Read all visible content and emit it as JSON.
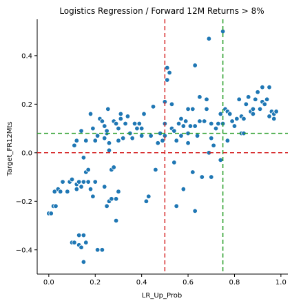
{
  "chart_data": {
    "type": "scatter",
    "title": "Logistics Regression / Forward 12M Returns > 8%",
    "xlabel": "LR_Up_Prob",
    "ylabel": "Target_FR12Mts",
    "xlim": [
      -0.05,
      1.03
    ],
    "ylim": [
      -0.5,
      0.55
    ],
    "xticks": [
      0.0,
      0.2,
      0.4,
      0.6,
      0.8,
      1.0
    ],
    "xtick_labels": [
      "0.0",
      "0.2",
      "0.4",
      "0.6",
      "0.8",
      "1.0"
    ],
    "yticks": [
      -0.4,
      -0.2,
      0.0,
      0.2,
      0.4
    ],
    "ytick_labels": [
      "−0.4",
      "−0.2",
      "0.0",
      "0.2",
      "0.4"
    ],
    "grid": false,
    "point_color": "#1f77b4",
    "reference_lines": [
      {
        "orientation": "vertical",
        "value": 0.5,
        "color": "#d62728",
        "style": "dashed"
      },
      {
        "orientation": "vertical",
        "value": 0.75,
        "color": "#2ca02c",
        "style": "dashed"
      },
      {
        "orientation": "horizontal",
        "value": 0.0,
        "color": "#d62728",
        "style": "dashed"
      },
      {
        "orientation": "horizontal",
        "value": 0.08,
        "color": "#2ca02c",
        "style": "dashed"
      }
    ],
    "points": [
      [
        0.0,
        -0.25
      ],
      [
        0.01,
        -0.25
      ],
      [
        0.02,
        -0.22
      ],
      [
        0.025,
        -0.16
      ],
      [
        0.03,
        -0.22
      ],
      [
        0.04,
        -0.15
      ],
      [
        0.05,
        -0.16
      ],
      [
        0.06,
        -0.12
      ],
      [
        0.08,
        -0.16
      ],
      [
        0.09,
        -0.12
      ],
      [
        0.1,
        -0.11
      ],
      [
        0.1,
        -0.37
      ],
      [
        0.11,
        -0.37
      ],
      [
        0.12,
        -0.15
      ],
      [
        0.12,
        -0.13
      ],
      [
        0.13,
        -0.34
      ],
      [
        0.13,
        -0.38
      ],
      [
        0.14,
        -0.39
      ],
      [
        0.15,
        -0.34
      ],
      [
        0.15,
        -0.45
      ],
      [
        0.16,
        -0.37
      ],
      [
        0.13,
        -0.12
      ],
      [
        0.14,
        -0.14
      ],
      [
        0.15,
        -0.12
      ],
      [
        0.16,
        -0.08
      ],
      [
        0.17,
        -0.12
      ],
      [
        0.18,
        -0.15
      ],
      [
        0.19,
        -0.18
      ],
      [
        0.2,
        -0.12
      ],
      [
        0.21,
        -0.4
      ],
      [
        0.23,
        -0.4
      ],
      [
        0.11,
        0.03
      ],
      [
        0.12,
        0.05
      ],
      [
        0.14,
        0.09
      ],
      [
        0.15,
        -0.02
      ],
      [
        0.16,
        0.05
      ],
      [
        0.17,
        -0.07
      ],
      [
        0.18,
        0.16
      ],
      [
        0.19,
        0.1
      ],
      [
        0.2,
        0.05
      ],
      [
        0.21,
        0.07
      ],
      [
        0.22,
        0.14
      ],
      [
        0.23,
        0.13
      ],
      [
        0.24,
        0.11
      ],
      [
        0.25,
        0.08
      ],
      [
        0.26,
        0.04
      ],
      [
        0.24,
        0.06
      ],
      [
        0.25,
        0.09
      ],
      [
        0.255,
        0.18
      ],
      [
        0.26,
        0.01
      ],
      [
        0.27,
        -0.07
      ],
      [
        0.28,
        0.13
      ],
      [
        0.29,
        0.12
      ],
      [
        0.3,
        0.1
      ],
      [
        0.3,
        0.05
      ],
      [
        0.31,
        0.14
      ],
      [
        0.24,
        -0.14
      ],
      [
        0.25,
        -0.22
      ],
      [
        0.26,
        -0.2
      ],
      [
        0.27,
        -0.19
      ],
      [
        0.28,
        -0.06
      ],
      [
        0.29,
        -0.19
      ],
      [
        0.29,
        -0.28
      ],
      [
        0.3,
        -0.16
      ],
      [
        0.31,
        0.16
      ],
      [
        0.32,
        0.06
      ],
      [
        0.33,
        0.12
      ],
      [
        0.34,
        0.15
      ],
      [
        0.35,
        0.08
      ],
      [
        0.36,
        0.06
      ],
      [
        0.37,
        0.12
      ],
      [
        0.38,
        0.1
      ],
      [
        0.39,
        0.12
      ],
      [
        0.4,
        0.07
      ],
      [
        0.4,
        0.1
      ],
      [
        0.41,
        0.16
      ],
      [
        0.42,
        -0.2
      ],
      [
        0.43,
        -0.18
      ],
      [
        0.44,
        0.07
      ],
      [
        0.45,
        0.19
      ],
      [
        0.46,
        -0.07
      ],
      [
        0.47,
        0.04
      ],
      [
        0.48,
        0.08
      ],
      [
        0.49,
        0.05
      ],
      [
        0.5,
        0.12
      ],
      [
        0.5,
        0.21
      ],
      [
        0.5,
        0.07
      ],
      [
        0.51,
        0.35
      ],
      [
        0.51,
        0.3
      ],
      [
        0.52,
        0.33
      ],
      [
        0.53,
        0.2
      ],
      [
        0.53,
        0.1
      ],
      [
        0.54,
        0.09
      ],
      [
        0.54,
        -0.04
      ],
      [
        0.55,
        0.05
      ],
      [
        0.55,
        -0.22
      ],
      [
        0.56,
        0.12
      ],
      [
        0.57,
        0.14
      ],
      [
        0.57,
        0.07
      ],
      [
        0.58,
        0.11
      ],
      [
        0.58,
        -0.15
      ],
      [
        0.59,
        0.13
      ],
      [
        0.6,
        0.08
      ],
      [
        0.6,
        0.18
      ],
      [
        0.6,
        0.04
      ],
      [
        0.61,
        0.11
      ],
      [
        0.62,
        0.18
      ],
      [
        0.62,
        -0.08
      ],
      [
        0.63,
        0.11
      ],
      [
        0.63,
        0.36
      ],
      [
        0.64,
        0.07
      ],
      [
        0.65,
        0.23
      ],
      [
        0.65,
        0.13
      ],
      [
        0.66,
        -0.1
      ],
      [
        0.67,
        0.13
      ],
      [
        0.68,
        0.22
      ],
      [
        0.68,
        0.18
      ],
      [
        0.69,
        0.47
      ],
      [
        0.7,
        0.06
      ],
      [
        0.7,
        0.12
      ],
      [
        0.71,
        0.03
      ],
      [
        0.72,
        0.1
      ],
      [
        0.73,
        0.12
      ],
      [
        0.74,
        0.16
      ],
      [
        0.75,
        0.5
      ],
      [
        0.75,
        0.12
      ],
      [
        0.76,
        0.18
      ],
      [
        0.77,
        0.17
      ],
      [
        0.78,
        0.16
      ],
      [
        0.79,
        0.13
      ],
      [
        0.8,
        0.11
      ],
      [
        0.81,
        0.14
      ],
      [
        0.82,
        0.22
      ],
      [
        0.83,
        0.15
      ],
      [
        0.84,
        0.14
      ],
      [
        0.85,
        0.2
      ],
      [
        0.86,
        0.23
      ],
      [
        0.87,
        0.17
      ],
      [
        0.88,
        0.16
      ],
      [
        0.89,
        0.22
      ],
      [
        0.9,
        0.25
      ],
      [
        0.91,
        0.18
      ],
      [
        0.92,
        0.21
      ],
      [
        0.93,
        0.2
      ],
      [
        0.94,
        0.22
      ],
      [
        0.95,
        0.15
      ],
      [
        0.96,
        0.17
      ],
      [
        0.97,
        0.16
      ],
      [
        0.98,
        0.17
      ],
      [
        0.63,
        -0.24
      ],
      [
        0.69,
        0.0
      ],
      [
        0.7,
        -0.1
      ],
      [
        0.74,
        -0.03
      ],
      [
        0.77,
        0.05
      ],
      [
        0.83,
        0.08
      ],
      [
        0.84,
        0.08
      ],
      [
        0.88,
        0.18
      ],
      [
        0.92,
        0.27
      ],
      [
        0.95,
        0.27
      ],
      [
        0.97,
        0.14
      ]
    ]
  }
}
